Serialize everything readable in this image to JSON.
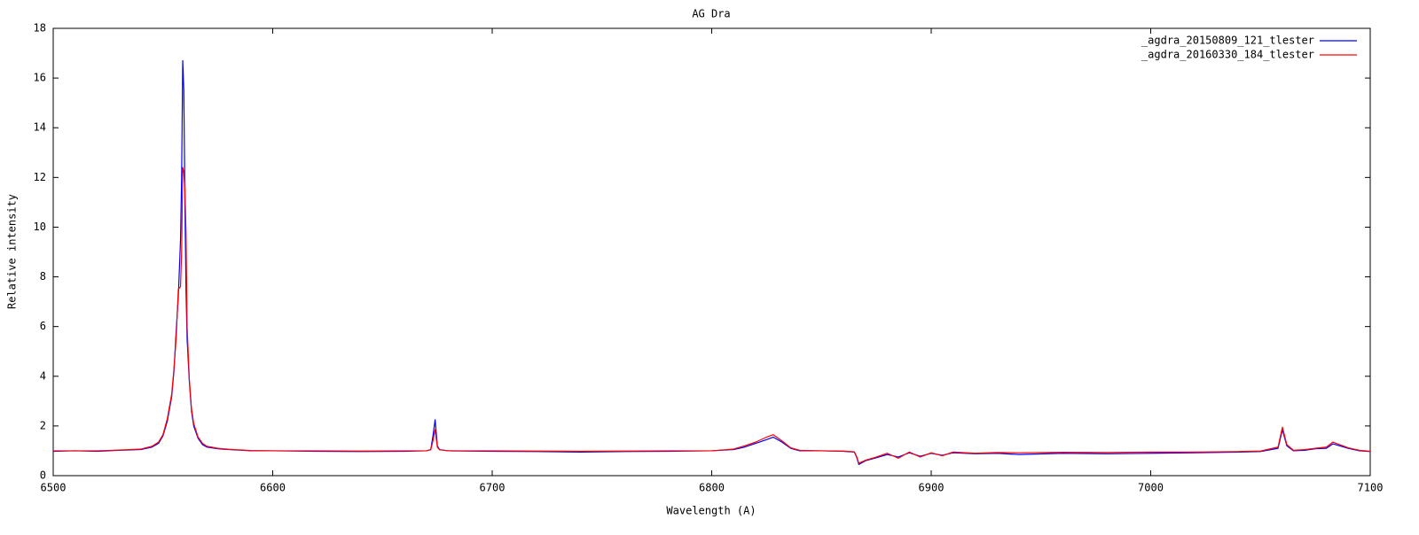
{
  "chart_data": {
    "type": "line",
    "title": "AG Dra",
    "xlabel": "Wavelength (A)",
    "ylabel": "Relative intensity",
    "xlim": [
      6500,
      7100
    ],
    "xticks": [
      6500,
      6600,
      6700,
      6800,
      6900,
      7000,
      7100
    ],
    "ylim": [
      0,
      18
    ],
    "yticks": [
      0,
      2,
      4,
      6,
      8,
      10,
      12,
      14,
      16,
      18
    ],
    "grid": false,
    "legend": "top-right",
    "x": [
      6500,
      6510,
      6520,
      6530,
      6540,
      6545,
      6548,
      6550,
      6552,
      6554,
      6555,
      6556,
      6557,
      6558,
      6558.5,
      6559,
      6559.5,
      6560,
      6560.5,
      6561,
      6562,
      6563,
      6564,
      6566,
      6568,
      6570,
      6575,
      6580,
      6590,
      6600,
      6620,
      6640,
      6660,
      6670,
      6672,
      6673,
      6674,
      6675,
      6676,
      6680,
      6700,
      6720,
      6740,
      6760,
      6780,
      6800,
      6810,
      6815,
      6820,
      6825,
      6828,
      6832,
      6836,
      6840,
      6850,
      6860,
      6865,
      6866,
      6867,
      6870,
      6875,
      6880,
      6885,
      6890,
      6895,
      6900,
      6905,
      6910,
      6920,
      6930,
      6940,
      6960,
      6980,
      7000,
      7020,
      7040,
      7050,
      7058,
      7060,
      7062,
      7065,
      7070,
      7075,
      7080,
      7083,
      7086,
      7090,
      7095,
      7100
    ],
    "series": [
      {
        "name": "_agdra_20150809_121_tlester",
        "color": "#0000ff",
        "values": [
          0.98,
          1.0,
          0.98,
          1.02,
          1.05,
          1.15,
          1.3,
          1.6,
          2.2,
          3.2,
          4.2,
          5.8,
          7.2,
          9.5,
          12,
          16.7,
          15.5,
          11,
          7.5,
          5.5,
          3.8,
          2.6,
          2.0,
          1.5,
          1.25,
          1.15,
          1.08,
          1.05,
          1.0,
          1.0,
          0.98,
          0.97,
          0.98,
          1.0,
          1.05,
          1.6,
          2.25,
          1.2,
          1.05,
          1.0,
          0.98,
          0.97,
          0.95,
          0.97,
          0.98,
          1.0,
          1.05,
          1.15,
          1.3,
          1.45,
          1.55,
          1.35,
          1.1,
          1.0,
          1.0,
          0.98,
          0.95,
          0.75,
          0.45,
          0.6,
          0.72,
          0.85,
          0.75,
          0.92,
          0.78,
          0.9,
          0.82,
          0.92,
          0.88,
          0.9,
          0.85,
          0.9,
          0.88,
          0.9,
          0.92,
          0.95,
          0.97,
          1.1,
          1.85,
          1.2,
          1.0,
          1.02,
          1.08,
          1.1,
          1.28,
          1.2,
          1.1,
          1.0,
          0.97
        ]
      },
      {
        "name": "_agdra_20160330_184_tlester",
        "color": "#ff0000",
        "values": [
          1.0,
          1.0,
          1.0,
          1.03,
          1.07,
          1.18,
          1.35,
          1.65,
          2.3,
          3.3,
          4.3,
          5.5,
          7.5,
          7.6,
          9,
          12.4,
          12.2,
          11.5,
          9.8,
          6,
          3.9,
          2.7,
          2.1,
          1.55,
          1.3,
          1.18,
          1.1,
          1.06,
          1.01,
          1.0,
          1.0,
          0.99,
          1.0,
          1.0,
          1.04,
          1.4,
          1.85,
          1.15,
          1.04,
          1.0,
          1.0,
          0.99,
          0.98,
          0.99,
          1.0,
          1.0,
          1.07,
          1.2,
          1.35,
          1.55,
          1.65,
          1.4,
          1.12,
          1.02,
          1.0,
          0.99,
          0.96,
          0.78,
          0.5,
          0.62,
          0.75,
          0.9,
          0.7,
          0.95,
          0.75,
          0.92,
          0.8,
          0.95,
          0.9,
          0.93,
          0.92,
          0.94,
          0.93,
          0.95,
          0.95,
          0.97,
          0.99,
          1.15,
          1.95,
          1.25,
          1.02,
          1.05,
          1.1,
          1.15,
          1.35,
          1.25,
          1.12,
          1.02,
          0.98
        ]
      }
    ]
  }
}
